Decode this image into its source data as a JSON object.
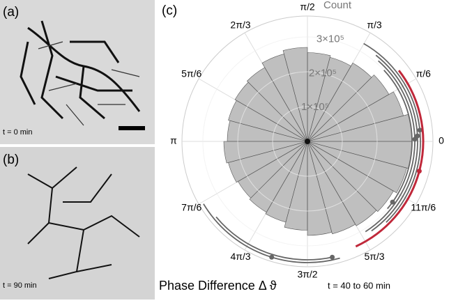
{
  "panels": [
    {
      "label": "(a)",
      "time": "t = 0 min"
    },
    {
      "label": "(b)",
      "time": "t = 90 min"
    }
  ],
  "chart_data": {
    "type": "polar-histogram",
    "panel_label": "(c)",
    "radial_label": "Count",
    "title": "Phase Difference Δ ϑ",
    "subtitle": "t = 40 to 60 min",
    "color": "#8a8a8a",
    "bins": [
      0,
      0.2618,
      0.5236,
      0.7854,
      1.0472,
      1.309,
      1.5708,
      1.8326,
      2.0944,
      2.3562,
      2.618,
      2.8798,
      3.1416,
      3.4034,
      3.6652,
      3.927,
      4.1888,
      4.4506,
      4.7124,
      4.9742,
      5.236,
      5.4978,
      5.7596,
      6.0214,
      6.2832
    ],
    "values": [
      300000,
      285000,
      270000,
      260000,
      250000,
      255000,
      270000,
      260000,
      245000,
      240000,
      235000,
      230000,
      240000,
      235000,
      230000,
      235000,
      240000,
      255000,
      270000,
      275000,
      280000,
      285000,
      295000,
      300000
    ],
    "rlim": [
      0,
      360000
    ],
    "rticks": [
      {
        "value": 100000,
        "label": "1×10⁵"
      },
      {
        "value": 200000,
        "label": "2×10⁵"
      },
      {
        "value": 300000,
        "label": "3×10⁵"
      }
    ],
    "xticks": [
      0,
      {
        "value": 0.5236,
        "label": "π/6"
      },
      {
        "value": 1.0472,
        "label": "π/3"
      },
      {
        "value": 1.5708,
        "label": "π/2"
      },
      {
        "value": 2.0944,
        "label": "2π/3"
      },
      {
        "value": 2.618,
        "label": "5π/6"
      },
      {
        "value": 3.1416,
        "label": "π"
      },
      {
        "value": 3.6652,
        "label": "7π/6"
      },
      {
        "value": 4.1888,
        "label": "4π/3"
      },
      {
        "value": 4.7124,
        "label": "3π/2"
      },
      {
        "value": 5.236,
        "label": "5π/3"
      },
      {
        "value": 5.7596,
        "label": "11π/6"
      }
    ],
    "arcs": [
      {
        "from": -0.7,
        "to": 0.75,
        "mean": -0.62,
        "color": "#666666"
      },
      {
        "from": -1.0,
        "to": 0.85,
        "mean": 0.02,
        "color": "#666666"
      },
      {
        "from": -0.95,
        "to": 0.9,
        "mean": 0.05,
        "color": "#666666"
      },
      {
        "from": -0.8,
        "to": 1.05,
        "mean": 0.1,
        "color": "#666666"
      },
      {
        "from": -1.14,
        "to": 0.66,
        "mean": -0.26,
        "color": "#c0283a"
      },
      {
        "from": -2.45,
        "to": -1.35,
        "mean": -1.36,
        "color": "#666666"
      },
      {
        "from": -2.6,
        "to": -1.3,
        "mean": -1.87,
        "color": "#666666"
      }
    ]
  }
}
